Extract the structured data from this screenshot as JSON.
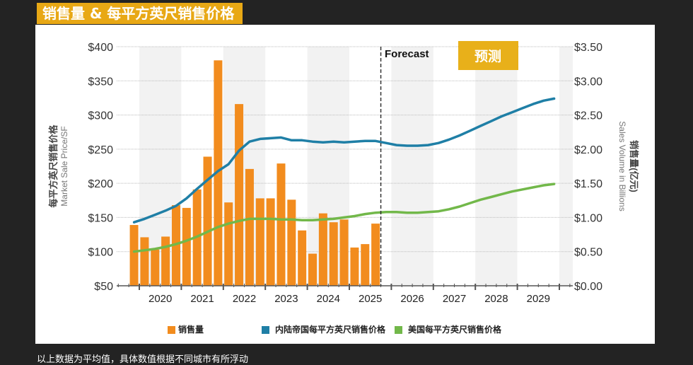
{
  "header": {
    "title": "销售量 & 每平方英尺销售价格"
  },
  "footer": {
    "note": "以上数据为平均值，具体数值根据不同城市有所浮动"
  },
  "forecast": {
    "label": "Forecast",
    "badge": "预测",
    "badge_color": "#e8b01a"
  },
  "chart_data": {
    "type": "bar+line",
    "title": "",
    "xlabel": "",
    "ylabel_left_cn": "每平方英尺销售价格",
    "ylabel_left_en": "Market Sale Price/SF",
    "ylabel_right_cn": "销售量(亿元)",
    "ylabel_right_en": "Sales Volume in Billions",
    "ylim_left": [
      50,
      400
    ],
    "ylim_right": [
      0,
      3.5
    ],
    "yticks_left": [
      "$50",
      "$100",
      "$150",
      "$200",
      "$250",
      "$300",
      "$350",
      "$400"
    ],
    "yticks_right": [
      "$0.00",
      "$0.50",
      "$1.00",
      "$1.50",
      "$2.00",
      "$2.50",
      "$3.00",
      "$3.50"
    ],
    "xticks": [
      "2020",
      "2021",
      "2022",
      "2023",
      "2024",
      "2025",
      "2026",
      "2027",
      "2028",
      "2029"
    ],
    "grid": true,
    "legend_position": "bottom",
    "bars": {
      "name": "销售量",
      "axis": "right",
      "color": "#f28c1e",
      "start_quarter": "2019Q4",
      "values": [
        0.89,
        0.71,
        0.53,
        0.72,
        1.18,
        1.14,
        1.41,
        1.89,
        3.3,
        1.22,
        2.66,
        1.71,
        1.28,
        1.28,
        1.79,
        1.26,
        0.81,
        0.47,
        1.06,
        0.93,
        0.97,
        0.56,
        0.61,
        0.91
      ]
    },
    "series": [
      {
        "name": "内陆帝国每平方英尺销售价格",
        "axis": "left",
        "color": "#1f7fa6",
        "start_quarter": "2019Q4",
        "values": [
          143,
          148,
          154,
          160,
          167,
          178,
          192,
          205,
          218,
          228,
          248,
          261,
          265,
          266,
          267,
          263,
          263,
          261,
          260,
          261,
          260,
          261,
          262,
          262,
          259,
          256,
          255,
          255,
          256,
          259,
          264,
          270,
          277,
          284,
          291,
          298,
          304,
          310,
          316,
          321,
          324
        ]
      },
      {
        "name": "美国每平方英尺销售价格",
        "axis": "left",
        "color": "#72b84a",
        "start_quarter": "2019Q4",
        "values": [
          100,
          102,
          104,
          107,
          111,
          116,
          122,
          129,
          136,
          141,
          145,
          148,
          148,
          148,
          147,
          147,
          146,
          146,
          147,
          148,
          150,
          152,
          155,
          157,
          158,
          158,
          157,
          157,
          158,
          159,
          162,
          166,
          171,
          176,
          180,
          184,
          188,
          191,
          194,
          197,
          199
        ]
      }
    ],
    "forecast_start": "2025Q4"
  }
}
